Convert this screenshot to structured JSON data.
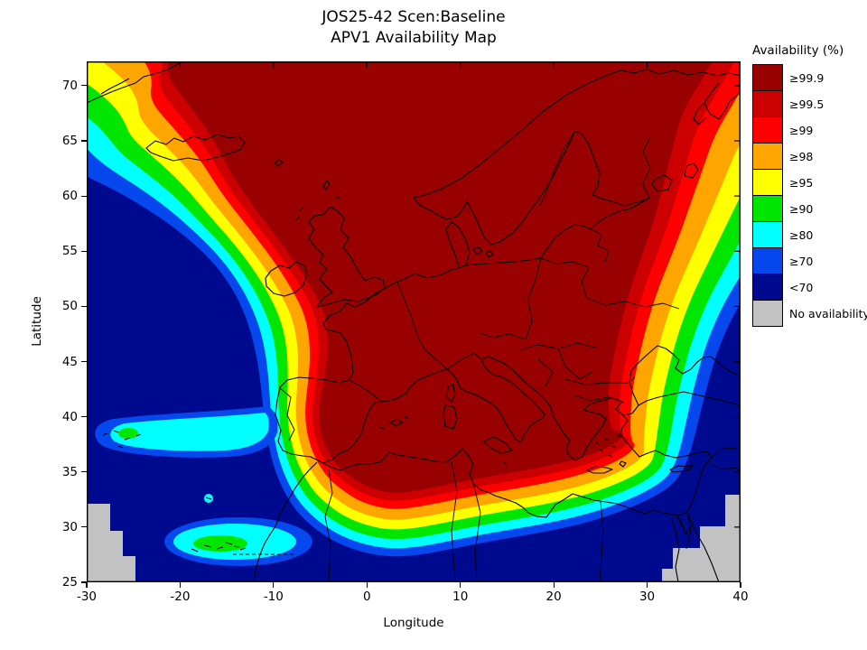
{
  "title": {
    "line1": "JOS25-42 Scen:Baseline",
    "line2": "APV1 Availability Map"
  },
  "axes": {
    "x_label": "Longitude",
    "y_label": "Latitude",
    "x_ticks": [
      "-30",
      "-20",
      "-10",
      "0",
      "10",
      "20",
      "30",
      "40"
    ],
    "y_ticks": [
      "25",
      "30",
      "35",
      "40",
      "45",
      "50",
      "55",
      "60",
      "65",
      "70"
    ]
  },
  "legend": {
    "title": "Availability (%)",
    "entries": [
      {
        "label": "≥99.9",
        "color": "#990000"
      },
      {
        "label": "≥99.5",
        "color": "#CC0000"
      },
      {
        "label": "≥99",
        "color": "#FF0000"
      },
      {
        "label": "≥98",
        "color": "#FFA500"
      },
      {
        "label": "≥95",
        "color": "#FFFF00"
      },
      {
        "label": "≥90",
        "color": "#00E600"
      },
      {
        "label": "≥80",
        "color": "#00FFFF"
      },
      {
        "label": "≥70",
        "color": "#0747EE"
      },
      {
        "label": "<70",
        "color": "#000A8F"
      },
      {
        "label": "No availability",
        "color": "#C2C2C2"
      }
    ]
  },
  "chart_data": {
    "type": "contour_map",
    "title": "JOS25-42 Scen:Baseline — APV1 Availability Map",
    "x_axis": {
      "label": "Longitude",
      "range": [
        -30,
        40
      ],
      "ticks": [
        -30,
        -20,
        -10,
        0,
        10,
        20,
        30,
        40
      ]
    },
    "y_axis": {
      "label": "Latitude",
      "range": [
        25,
        72
      ],
      "ticks": [
        25,
        30,
        35,
        40,
        45,
        50,
        55,
        60,
        65,
        70
      ]
    },
    "levels_percent": [
      99.9,
      99.5,
      99,
      98,
      95,
      90,
      80,
      70
    ],
    "level_colors": [
      "#990000",
      "#CC0000",
      "#FF0000",
      "#FFA500",
      "#FFFF00",
      "#00E600",
      "#00FFFF",
      "#0747EE"
    ],
    "below_min_color": "#000A8F",
    "no_data_color": "#C2C2C2",
    "description": "APV1 availability contour map over Europe. A dark-red core (>=99.9%) covers continental Europe, Iceland, Scandinavia and the central Mediterranean. Concentric rainbow bands (99.5, 99, 98, 95, 90, 80, 70) fall off toward the Atlantic in the west, North Africa in the south and the eastern/southeastern map edge, reaching <70% (navy) over the open ocean, the far southeast and the bottom of the map.",
    "features": [
      "cyan >=80% tongue extending west around the Azores (~38N, -28..-20E)",
      "green/cyan pocket of availability around the Canary Islands (~28N)",
      "small cyan spot at Madeira",
      "gray stair-step 'no availability' patches in the bottom-left and bottom-right corners",
      "black coastlines and country borders drawn over the contours"
    ]
  }
}
